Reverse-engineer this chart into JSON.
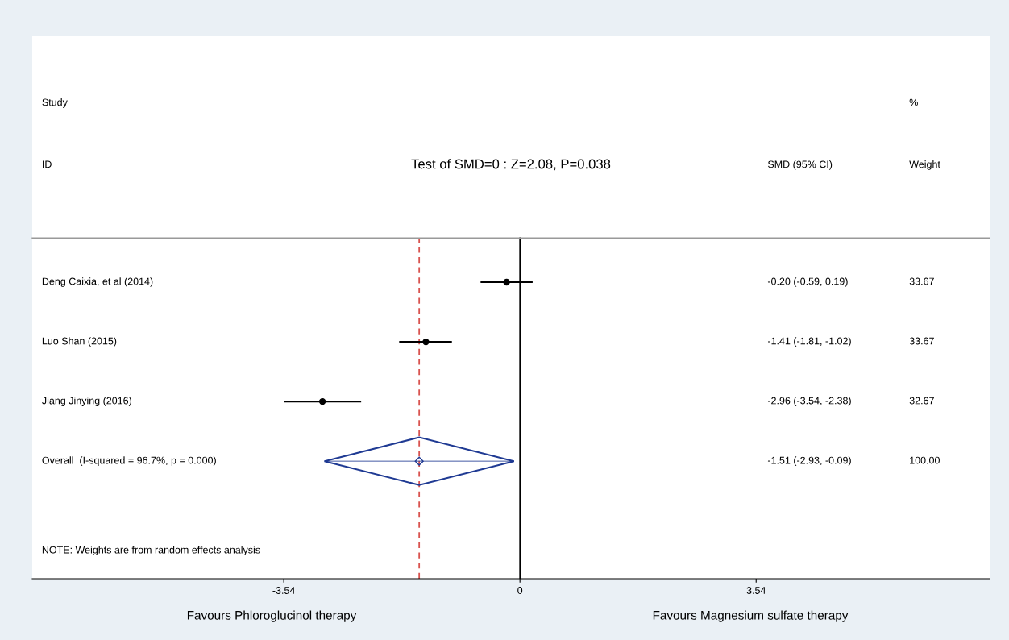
{
  "chart_data": {
    "type": "scatter",
    "orientation": "horizontal",
    "title": "Test of SMD=0 : Z=2.08, P=0.038",
    "categories": [
      "Deng Caixia, et al (2014)",
      "Luo Shan (2015)",
      "Jiang Jinying (2016)",
      "Overall  (I-squared = 96.7%, p = 0.000)"
    ],
    "series": [
      {
        "color": "#000000",
        "marker": "circle",
        "values": [
          -0.2,
          -1.41,
          -2.96,
          null
        ],
        "errors": [
          [
            -0.59,
            0.19
          ],
          [
            -1.81,
            -1.02
          ],
          [
            -3.54,
            -2.38
          ],
          null
        ]
      },
      {
        "color": "#1f3a93",
        "marker": "diamond",
        "values": [
          null,
          null,
          null,
          -1.51
        ],
        "errors": [
          null,
          null,
          null,
          [
            -2.93,
            -0.09
          ]
        ]
      }
    ],
    "value_labels": [
      "-0.20 (-0.59, 0.19)",
      "-1.41 (-1.81, -1.02)",
      "-2.96 (-3.54, -2.38)",
      "-1.51 (-2.93, -0.09)"
    ],
    "xlim": [
      -7.31,
      7.04
    ],
    "xticks": [
      -3.54,
      0,
      3.54
    ],
    "ref_lines": [
      {
        "axis": "x",
        "value": 0,
        "color": "#000000",
        "line_style": "solid"
      },
      {
        "axis": "x",
        "value": -1.51,
        "color": "#d9534f",
        "line_style": "dashed"
      }
    ],
    "annotations": [
      "Study",
      "%",
      "ID",
      "SMD (95% CI)",
      "Weight",
      "33.67",
      "33.67",
      "32.67",
      "100.00",
      "NOTE: Weights are from random effects analysis",
      "Favours Phloroglucinol therapy",
      "Favours Magnesium sulfate therapy"
    ],
    "grid": false,
    "legend": false
  }
}
